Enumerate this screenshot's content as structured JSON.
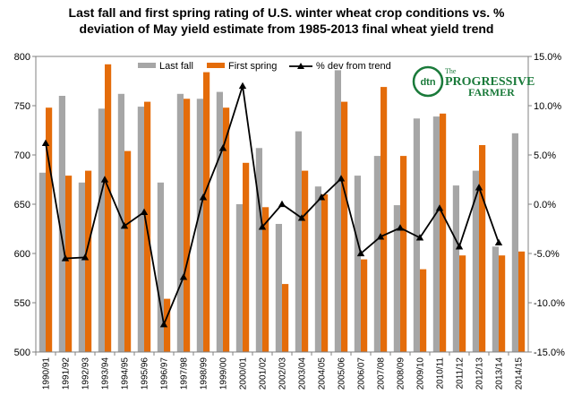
{
  "chart_data": {
    "type": "bar",
    "title_lines": [
      "Last fall and first spring rating of U.S. winter wheat crop conditions vs. %",
      "deviation of May yield estimate from 1985-2013 final  wheat yield trend"
    ],
    "categories": [
      "1990/91",
      "1991/92",
      "1992/93",
      "1993/94",
      "1994/95",
      "1995/96",
      "1996/97",
      "1997/98",
      "1998/99",
      "1999/00",
      "2000/01",
      "2001/02",
      "2002/03",
      "2003/04",
      "2004/05",
      "2005/06",
      "2006/07",
      "2007/08",
      "2008/09",
      "2009/10",
      "2010/11",
      "2011/12",
      "2012/13",
      "2013/14",
      "2014/15"
    ],
    "series": [
      {
        "name": "Last fall",
        "color": "#a6a6a6",
        "axis": "left",
        "values": [
          682,
          760,
          672,
          747,
          762,
          749,
          672,
          762,
          757,
          764,
          650,
          707,
          630,
          724,
          668,
          786,
          679,
          699,
          649,
          737,
          739,
          669,
          684,
          607,
          722
        ]
      },
      {
        "name": "First spring",
        "color": "#e46c0a",
        "axis": "left",
        "values": [
          748,
          679,
          684,
          792,
          704,
          754,
          554,
          757,
          784,
          748,
          692,
          647,
          569,
          684,
          660,
          754,
          594,
          769,
          699,
          584,
          742,
          598,
          710,
          598,
          602
        ]
      },
      {
        "name": "% dev from trend",
        "color": "#000000",
        "axis": "right",
        "type": "line",
        "values": [
          6.2,
          -5.5,
          -5.4,
          2.5,
          -2.2,
          -0.8,
          -12.2,
          -7.4,
          0.7,
          5.7,
          12.0,
          -2.3,
          0.0,
          -1.4,
          0.7,
          2.6,
          -5.0,
          -3.3,
          -2.4,
          -3.4,
          -0.4,
          -4.3,
          1.7,
          -3.9,
          null
        ]
      }
    ],
    "y_left": {
      "min": 500,
      "max": 800,
      "ticks": [
        500,
        550,
        600,
        650,
        700,
        750,
        800
      ]
    },
    "y_right": {
      "min": -15,
      "max": 15,
      "ticks": [
        "-15.0%",
        "-10.0%",
        "-5.0%",
        "0.0%",
        "5.0%",
        "10.0%",
        "15.0%"
      ]
    },
    "legend_position": "top-center",
    "grid": false
  },
  "logo": {
    "badge": "dtn",
    "line1": "The",
    "line2": "PROGRESSIVE",
    "line3": "FARMER"
  }
}
